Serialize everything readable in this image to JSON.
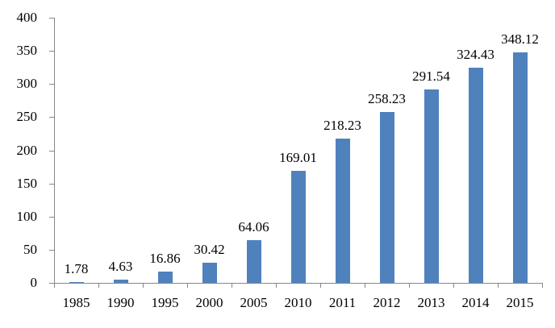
{
  "chart_data": {
    "type": "bar",
    "title": "",
    "xlabel": "",
    "ylabel": "",
    "categories": [
      "1985",
      "1990",
      "1995",
      "2000",
      "2005",
      "2010",
      "2011",
      "2012",
      "2013",
      "2014",
      "2015"
    ],
    "values": [
      1.78,
      4.63,
      16.86,
      30.42,
      64.06,
      169.01,
      218.23,
      258.23,
      291.54,
      324.43,
      348.12
    ],
    "value_labels": [
      "1.78",
      "4.63",
      "16.86",
      "30.42",
      "64.06",
      "169.01",
      "218.23",
      "258.23",
      "291.54",
      "324.43",
      "348.12"
    ],
    "ylim": [
      0,
      400
    ],
    "ytick_labels": [
      "0",
      "50",
      "100",
      "150",
      "200",
      "250",
      "300",
      "350",
      "400"
    ],
    "ytick_interval": 50,
    "grid": false,
    "legend_position": "none",
    "bar_color": "#4F81BD",
    "axis_color": "#878787",
    "text_color": "#000000",
    "background_color": "#FFFFFF"
  }
}
